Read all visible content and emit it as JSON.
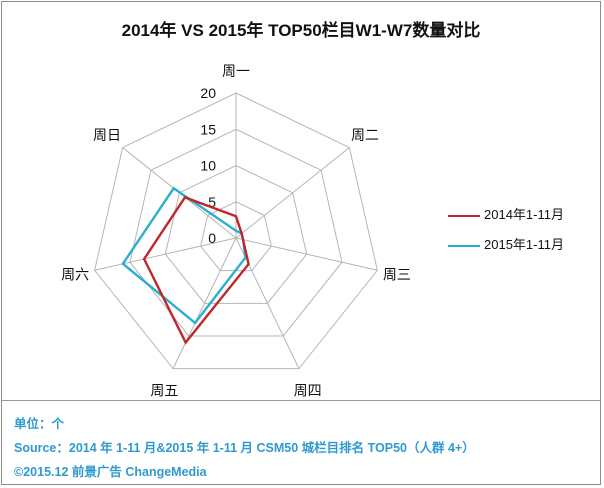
{
  "chart_data": {
    "type": "radar",
    "title": "2014年 VS 2015年 TOP50栏目W1-W7数量对比",
    "axes": [
      "周一",
      "周二",
      "周三",
      "周四",
      "周五",
      "周六",
      "周日"
    ],
    "scale_ticks": [
      "0",
      "5",
      "10",
      "15",
      "20"
    ],
    "range": [
      0,
      20
    ],
    "grid": true,
    "legend_position": "right",
    "series": [
      {
        "name": "2014年1-11月",
        "color": "#c0262c",
        "values": [
          3,
          1,
          1,
          4,
          16,
          13,
          9
        ]
      },
      {
        "name": "2015年1-11月",
        "color": "#2ab0cf",
        "values": [
          1,
          1,
          1,
          3,
          13,
          16,
          11
        ]
      }
    ]
  },
  "notes": {
    "unit": "单位：个",
    "source": "Source：2014 年 1-11 月&2015 年 1-11 月  CSM50 城栏目排名 TOP50（人群 4+）",
    "copyright": "©2015.12  前景广告  ChangeMedia"
  }
}
